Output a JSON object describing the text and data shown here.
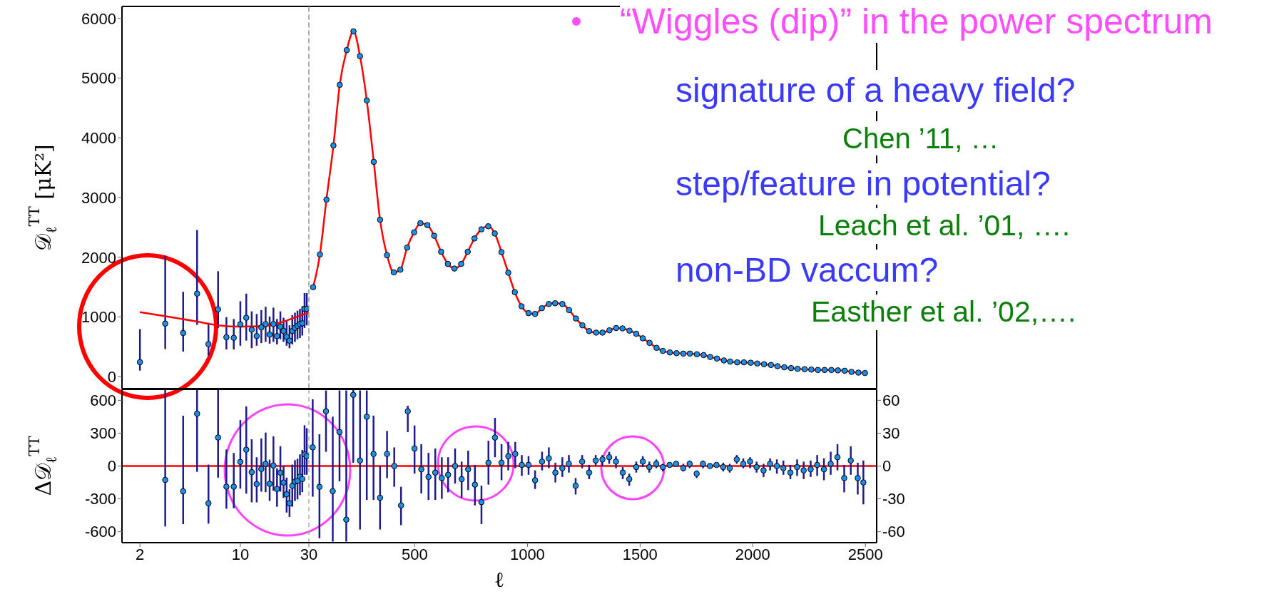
{
  "chart_data": [
    {
      "type": "scatter",
      "ylabel": "𝒟$_{ℓ}$$^{TT}$ [μK²]",
      "log": "x",
      "xlim": [
        1.5,
        30
      ],
      "xticks": [
        2,
        10,
        30
      ],
      "ylim": [
        -200,
        6200
      ],
      "yticks": [
        0,
        1000,
        2000,
        3000,
        4000,
        5000,
        6000
      ],
      "tick_labels": "y",
      "legend": false,
      "grid": false,
      "x": [
        2,
        3,
        4,
        5,
        6,
        7,
        8,
        9,
        10,
        11,
        12,
        13,
        14,
        15,
        16,
        17,
        18,
        19,
        20,
        21,
        22,
        23,
        24,
        25,
        26,
        27,
        28,
        29
      ],
      "series": [
        {
          "type": "scatter",
          "color": "#1e8fe8",
          "marker": "circle",
          "values": [
            243,
            889,
            732,
            1391,
            545,
            1128,
            660,
            651,
            877,
            987,
            787,
            681,
            825,
            881,
            706,
            881,
            681,
            838,
            766,
            668,
            604,
            766,
            817,
            851,
            881,
            894,
            1136,
            1136
          ],
          "errors": [
            [
              102,
              796
            ],
            [
              464,
              2030
            ],
            [
              421,
              1421
            ],
            [
              868,
              2455
            ],
            [
              357,
              902
            ],
            [
              817,
              1766
            ],
            [
              455,
              996
            ],
            [
              455,
              966
            ],
            [
              519,
              1264
            ],
            [
              604,
              1391
            ],
            [
              477,
              1094
            ],
            [
              519,
              1051
            ],
            [
              562,
              1115
            ],
            [
              583,
              1170
            ],
            [
              553,
              1008
            ],
            [
              583,
              1157
            ],
            [
              540,
              966
            ],
            [
              625,
              1094
            ],
            [
              583,
              987
            ],
            [
              519,
              936
            ],
            [
              477,
              860
            ],
            [
              540,
              1030
            ],
            [
              583,
              1072
            ],
            [
              625,
              1106
            ],
            [
              647,
              1136
            ],
            [
              689,
              1179
            ],
            [
              817,
              1400
            ],
            [
              860,
              1400
            ]
          ]
        },
        {
          "type": "line",
          "color": "#ff0000",
          "x": [
            2,
            5,
            7,
            10,
            15,
            20,
            25,
            30
          ],
          "values": [
            1081,
            923,
            860,
            838,
            851,
            923,
            1008,
            1072
          ]
        }
      ],
      "ref_lines": [
        {
          "axis": "x",
          "value": 30,
          "color": "#999999",
          "line_style": "dashed"
        }
      ]
    },
    {
      "type": "scatter",
      "xlim": [
        30,
        2550
      ],
      "xticks": [
        500,
        1000,
        1500,
        2000,
        2500
      ],
      "ylim": [
        -200,
        6200
      ],
      "tick_labels": false,
      "legend": false,
      "grid": false,
      "annotations": [
        "“Wiggles (dip)” in the power spectrum",
        "signature of a heavy field?",
        "Chen ’11, …",
        "step/feature in potential?",
        "Leach et al. ’01, ….",
        "non-BD vaccum?",
        "Easther et al. ’02,…."
      ],
      "x": [
        49,
        79,
        108,
        139,
        167,
        198,
        228,
        257,
        287,
        318,
        346,
        377,
        407,
        436,
        466,
        497,
        525,
        556,
        586,
        617,
        647,
        676,
        706,
        735,
        765,
        796,
        826,
        855,
        885,
        915,
        944,
        974,
        1005,
        1034,
        1064,
        1095,
        1123,
        1155,
        1185,
        1215,
        1244,
        1274,
        1305,
        1333,
        1364,
        1394,
        1422,
        1453,
        1483,
        1512,
        1542,
        1573,
        1601,
        1632,
        1662,
        1692,
        1721,
        1752,
        1782,
        1811,
        1841,
        1872,
        1900,
        1931,
        1961,
        1991,
        2020,
        2050,
        2081,
        2110,
        2140,
        2170,
        2199,
        2230,
        2260,
        2289,
        2319,
        2349,
        2378,
        2408,
        2438,
        2469,
        2498
      ],
      "series": [
        {
          "type": "scatter",
          "color": "#1e8fe8",
          "marker": "circle",
          "values": [
            1498,
            2047,
            2966,
            3871,
            4888,
            5469,
            5782,
            5367,
            4626,
            3598,
            2628,
            2034,
            1747,
            1792,
            2162,
            2417,
            2570,
            2538,
            2360,
            2092,
            1888,
            1811,
            1888,
            2092,
            2315,
            2468,
            2519,
            2398,
            2085,
            1741,
            1415,
            1179,
            1064,
            1051,
            1147,
            1217,
            1230,
            1217,
            1115,
            975,
            860,
            764,
            738,
            738,
            777,
            815,
            809,
            771,
            719,
            643,
            566,
            483,
            432,
            406,
            394,
            387,
            387,
            375,
            362,
            330,
            304,
            272,
            253,
            240,
            240,
            234,
            221,
            208,
            196,
            176,
            157,
            144,
            132,
            125,
            119,
            112,
            112,
            112,
            106,
            100,
            80,
            68,
            61
          ]
        },
        {
          "type": "line",
          "color": "#ff0000",
          "values": [
            1498,
            2047,
            2966,
            3871,
            4888,
            5469,
            5782,
            5367,
            4626,
            3598,
            2628,
            2034,
            1747,
            1792,
            2162,
            2417,
            2570,
            2538,
            2360,
            2092,
            1888,
            1811,
            1888,
            2092,
            2315,
            2468,
            2519,
            2398,
            2085,
            1741,
            1415,
            1179,
            1064,
            1051,
            1147,
            1217,
            1230,
            1217,
            1115,
            975,
            860,
            764,
            738,
            738,
            777,
            815,
            809,
            771,
            719,
            643,
            566,
            483,
            432,
            406,
            394,
            387,
            387,
            375,
            362,
            330,
            304,
            272,
            253,
            240,
            240,
            234,
            221,
            208,
            196,
            176,
            157,
            144,
            132,
            125,
            119,
            112,
            112,
            112,
            106,
            100,
            80,
            68,
            61
          ]
        }
      ]
    },
    {
      "type": "scatter",
      "ylabel": "Δ𝒟$_{ℓ}$$^{TT}$",
      "log": "x",
      "xlim": [
        1.5,
        30
      ],
      "xticks": [
        2,
        10,
        30
      ],
      "ylim": [
        -700,
        700
      ],
      "yticks": [
        -600,
        -300,
        0,
        300,
        600
      ],
      "legend": false,
      "grid": false,
      "x": [
        3,
        4,
        5,
        6,
        7,
        8,
        9,
        10,
        11,
        12,
        13,
        14,
        15,
        16,
        17,
        18,
        19,
        20,
        21,
        22,
        23,
        24,
        25,
        26,
        27,
        28,
        29
      ],
      "series": [
        {
          "type": "scatter",
          "color": "#1e8fe8",
          "marker": "circle",
          "values": [
            -127,
            -231,
            478,
            -340,
            260,
            -189,
            -189,
            37,
            149,
            -56,
            -165,
            -27,
            19,
            -162,
            5,
            -210,
            -61,
            -151,
            -258,
            -340,
            -181,
            -143,
            -135,
            -98,
            -119,
            106,
            90
          ],
          "errors": [
            [
              -552,
              700
            ],
            [
              -531,
              459
            ],
            [
              -53,
              700
            ],
            [
              -526,
              13
            ],
            [
              -106,
              700
            ],
            [
              -390,
              151
            ],
            [
              -385,
              119
            ],
            [
              -207,
              419
            ],
            [
              -252,
              544
            ],
            [
              -332,
              244
            ],
            [
              -332,
              80
            ],
            [
              -234,
              252
            ],
            [
              -239,
              305
            ],
            [
              -319,
              58
            ],
            [
              -226,
              271
            ],
            [
              -372,
              -21
            ],
            [
              -234,
              181
            ],
            [
              -292,
              0
            ],
            [
              -425,
              -106
            ],
            [
              -465,
              -212
            ],
            [
              -372,
              13
            ],
            [
              -319,
              53
            ],
            [
              -305,
              66
            ],
            [
              -266,
              106
            ],
            [
              -239,
              146
            ],
            [
              -80,
              372
            ],
            [
              -80,
              345
            ]
          ]
        }
      ],
      "ref_lines": [
        {
          "axis": "y",
          "value": 0,
          "color": "#ff0000"
        },
        {
          "axis": "x",
          "value": 30,
          "color": "#999999",
          "line_style": "dashed"
        }
      ]
    },
    {
      "type": "scatter",
      "xlabel": "ℓ",
      "xlim": [
        30,
        2550
      ],
      "xticks": [
        500,
        1000,
        1500,
        2000,
        2500
      ],
      "ylim": [
        -70,
        70
      ],
      "yticks": [
        -60,
        -30,
        0,
        30,
        60
      ],
      "legend": false,
      "grid": false,
      "x": [
        47,
        77,
        106,
        136,
        166,
        196,
        227,
        257,
        287,
        317,
        346,
        377,
        409,
        439,
        469,
        499,
        529,
        561,
        591,
        620,
        648,
        679,
        708,
        737,
        767,
        796,
        827,
        856,
        885,
        915,
        946,
        975,
        1005,
        1034,
        1065,
        1095,
        1124,
        1155,
        1184,
        1214,
        1243,
        1274,
        1303,
        1333,
        1363,
        1393,
        1423,
        1452,
        1483,
        1512,
        1541,
        1572,
        1601,
        1631,
        1660,
        1692,
        1720,
        1751,
        1779,
        1810,
        1839,
        1869,
        1898,
        1929,
        1958,
        1988,
        2017,
        2048,
        2077,
        2107,
        2136,
        2167,
        2197,
        2226,
        2257,
        2286,
        2316,
        2346,
        2376,
        2406,
        2435,
        2466,
        2491
      ],
      "series": [
        {
          "type": "scatter",
          "color": "#1e8fe8",
          "marker": "circle",
          "values": [
            17,
            -19,
            50,
            -23,
            31,
            -49,
            65,
            5,
            45,
            11,
            -29,
            11,
            0,
            -36,
            50,
            16,
            -3,
            -10,
            -6,
            -11,
            -8,
            0,
            -12,
            -3,
            -17,
            -33,
            3,
            26,
            3,
            9,
            11,
            1,
            1,
            -13,
            4,
            7,
            -6,
            -2,
            2,
            -18,
            4,
            -6,
            5,
            6,
            8,
            4,
            -6,
            -12,
            -1,
            4,
            -1,
            2,
            -1,
            1,
            2,
            -2,
            2,
            -7,
            2,
            0,
            1,
            -1,
            -2,
            6,
            2,
            4,
            -1,
            -4,
            2,
            0,
            -2,
            -6,
            -1,
            -4,
            -3,
            1,
            -3,
            2,
            8,
            -11,
            5,
            -11,
            -15
          ],
          "errors": [
            [
              -28,
              61
            ],
            [
              -66,
              29
            ],
            [
              13,
              69
            ],
            [
              -69,
              45
            ],
            [
              -14,
              69
            ],
            [
              -69,
              69
            ],
            [
              3,
              70
            ],
            [
              -58,
              69
            ],
            [
              -31,
              69
            ],
            [
              -31,
              46
            ],
            [
              -58,
              0
            ],
            [
              -11,
              32
            ],
            [
              -19,
              17
            ],
            [
              -54,
              -19
            ],
            [
              31,
              55
            ],
            [
              -7,
              37
            ],
            [
              -25,
              20
            ],
            [
              -31,
              12
            ],
            [
              -31,
              16
            ],
            [
              -30,
              8
            ],
            [
              -24,
              8
            ],
            [
              -16,
              16
            ],
            [
              -29,
              4
            ],
            [
              -22,
              14
            ],
            [
              -36,
              1
            ],
            [
              -53,
              -18
            ],
            [
              -17,
              23
            ],
            [
              8,
              44
            ],
            [
              -13,
              20
            ],
            [
              -4,
              22
            ],
            [
              -2,
              22
            ],
            [
              -9,
              10
            ],
            [
              -8,
              9
            ],
            [
              -21,
              -4
            ],
            [
              -4,
              13
            ],
            [
              -2,
              17
            ],
            [
              -15,
              3
            ],
            [
              -10,
              8
            ],
            [
              -6,
              10
            ],
            [
              -26,
              -11
            ],
            [
              -2,
              10
            ],
            [
              -12,
              1
            ],
            [
              0,
              10
            ],
            [
              0,
              10
            ],
            [
              2,
              13
            ],
            [
              -2,
              9
            ],
            [
              -12,
              -1
            ],
            [
              -18,
              -7
            ],
            [
              -6,
              4
            ],
            [
              -1,
              9
            ],
            [
              -6,
              4
            ],
            [
              -2,
              6
            ],
            [
              -5,
              2
            ],
            null,
            null,
            [
              -5,
              2
            ],
            [
              -2,
              5
            ],
            [
              -11,
              -4
            ],
            [
              -2,
              5
            ],
            null,
            null,
            [
              -5,
              3
            ],
            [
              -6,
              2
            ],
            [
              2,
              10
            ],
            [
              -2,
              7
            ],
            [
              -2,
              8
            ],
            [
              -6,
              4
            ],
            [
              -10,
              2
            ],
            [
              -4,
              7
            ],
            [
              -7,
              6
            ],
            [
              -8,
              5
            ],
            [
              -12,
              1
            ],
            [
              -9,
              6
            ],
            [
              -12,
              4
            ],
            [
              -10,
              5
            ],
            [
              -9,
              10
            ],
            [
              -13,
              7
            ],
            [
              -8,
              13
            ],
            [
              -4,
              20
            ],
            [
              -24,
              1
            ],
            [
              -8,
              18
            ],
            [
              -26,
              3
            ],
            [
              -35,
              5
            ]
          ]
        }
      ],
      "ref_lines": [
        {
          "axis": "y",
          "value": 0,
          "color": "#ff0000"
        }
      ]
    }
  ]
}
